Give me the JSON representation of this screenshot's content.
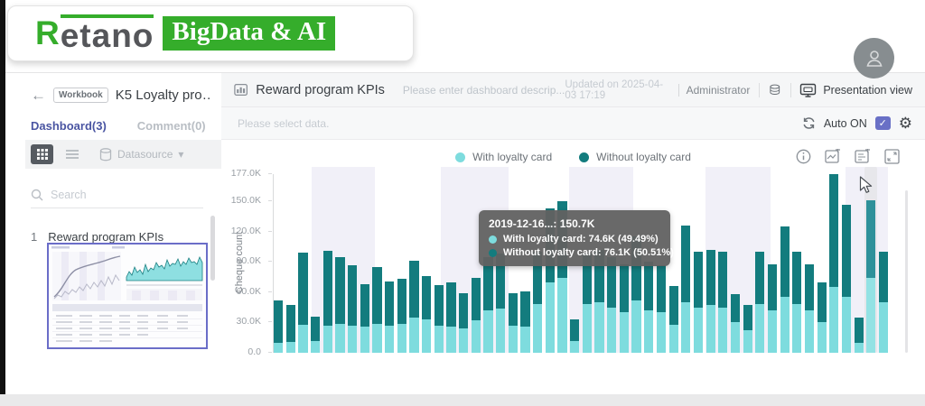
{
  "logo": {
    "brand_first": "R",
    "brand_rest": "etano",
    "badge": "BigData & AI"
  },
  "icons": {
    "back": "←",
    "caret_down": "▾",
    "gear": "⚙",
    "check": "✓"
  },
  "avatar": {
    "name": "user-avatar"
  },
  "sidebar": {
    "workbook_badge": "Workbook",
    "workbook_title": "K5 Loyalty pro…",
    "tabs": [
      {
        "label": "Dashboard(3)",
        "active": true
      },
      {
        "label": "Comment(0)",
        "active": false
      }
    ],
    "datasource_label": "Datasource",
    "search_placeholder": "Search",
    "dashboard_item": {
      "index": "1",
      "label": "Reward program KPIs"
    }
  },
  "header": {
    "title": "Reward program KPIs",
    "description_placeholder": "Please enter dashboard descrip...",
    "updated": "Updated on 2025-04-03 17:19",
    "user": "Administrator",
    "presentation_label": "Presentation view"
  },
  "subheader": {
    "select_data_placeholder": "Please select data.",
    "auto_label": "Auto ON"
  },
  "colors": {
    "teal_light": "#7EDCDE",
    "teal_dark": "#137C7E",
    "hover_dark": "#2E919A",
    "accent_indigo": "#4A55A2",
    "checkbox_purple": "#6970C6",
    "brand_green": "#35AD2B",
    "band_lavender": "#F1F0F8",
    "tooltip_bg": "#616161"
  },
  "chart_data": {
    "type": "bar",
    "stacked": true,
    "title": "",
    "xlabel": "",
    "ylabel": "Cheque count",
    "ymax": 177,
    "ylim": [
      0,
      177
    ],
    "grid": false,
    "legend_position": "top-center",
    "yticks": [
      "177.0K",
      "150.0K",
      "120.0K",
      "90.0K",
      "60.0K",
      "30.0K",
      "0.0"
    ],
    "ytick_values": [
      177,
      150,
      120,
      90,
      60,
      30,
      0
    ],
    "x_unit": "day (date labels not visible)",
    "legend": [
      {
        "name": "With loyalty card",
        "color": "#7EDCDE"
      },
      {
        "name": "Without loyalty card",
        "color": "#137C7E"
      }
    ],
    "series": [
      {
        "name": "With loyalty card",
        "values": [
          10,
          11,
          28,
          12,
          27,
          29,
          27,
          26,
          29,
          27,
          29,
          35,
          33,
          27,
          26,
          24,
          32,
          42,
          44,
          27,
          26,
          48,
          70,
          74,
          12,
          48,
          50,
          45,
          40,
          52,
          42,
          40,
          28,
          50,
          45,
          47,
          45,
          30,
          22,
          48,
          42,
          55,
          48,
          42,
          30,
          65,
          55,
          10,
          74.6,
          50
        ]
      },
      {
        "name": "Without loyalty card",
        "values": [
          42,
          36,
          71,
          24,
          74,
          66,
          60,
          42,
          56,
          44,
          44,
          56,
          43,
          40,
          44,
          35,
          42,
          53,
          54,
          32,
          35,
          52,
          73,
          76,
          21,
          50,
          52,
          50,
          48,
          63,
          48,
          47,
          38,
          76,
          55,
          55,
          55,
          28,
          25,
          52,
          46,
          70,
          52,
          46,
          40,
          112,
          92,
          25,
          76.1,
          50
        ]
      }
    ],
    "hover_index": 48,
    "highlight_bands": [
      [
        0.062,
        0.165
      ],
      [
        0.272,
        0.382
      ],
      [
        0.481,
        0.585
      ],
      [
        0.703,
        0.809
      ],
      [
        0.931,
        1.0
      ]
    ],
    "tooltip": {
      "title": "2019-12-16...: 150.7K",
      "rows": [
        {
          "label": "With loyalty card: 74.6K (49.49%)",
          "color": "#7EDCDE"
        },
        {
          "label": "Without loyalty card: 76.1K (50.51%)",
          "color": "#137C7E"
        }
      ]
    }
  }
}
